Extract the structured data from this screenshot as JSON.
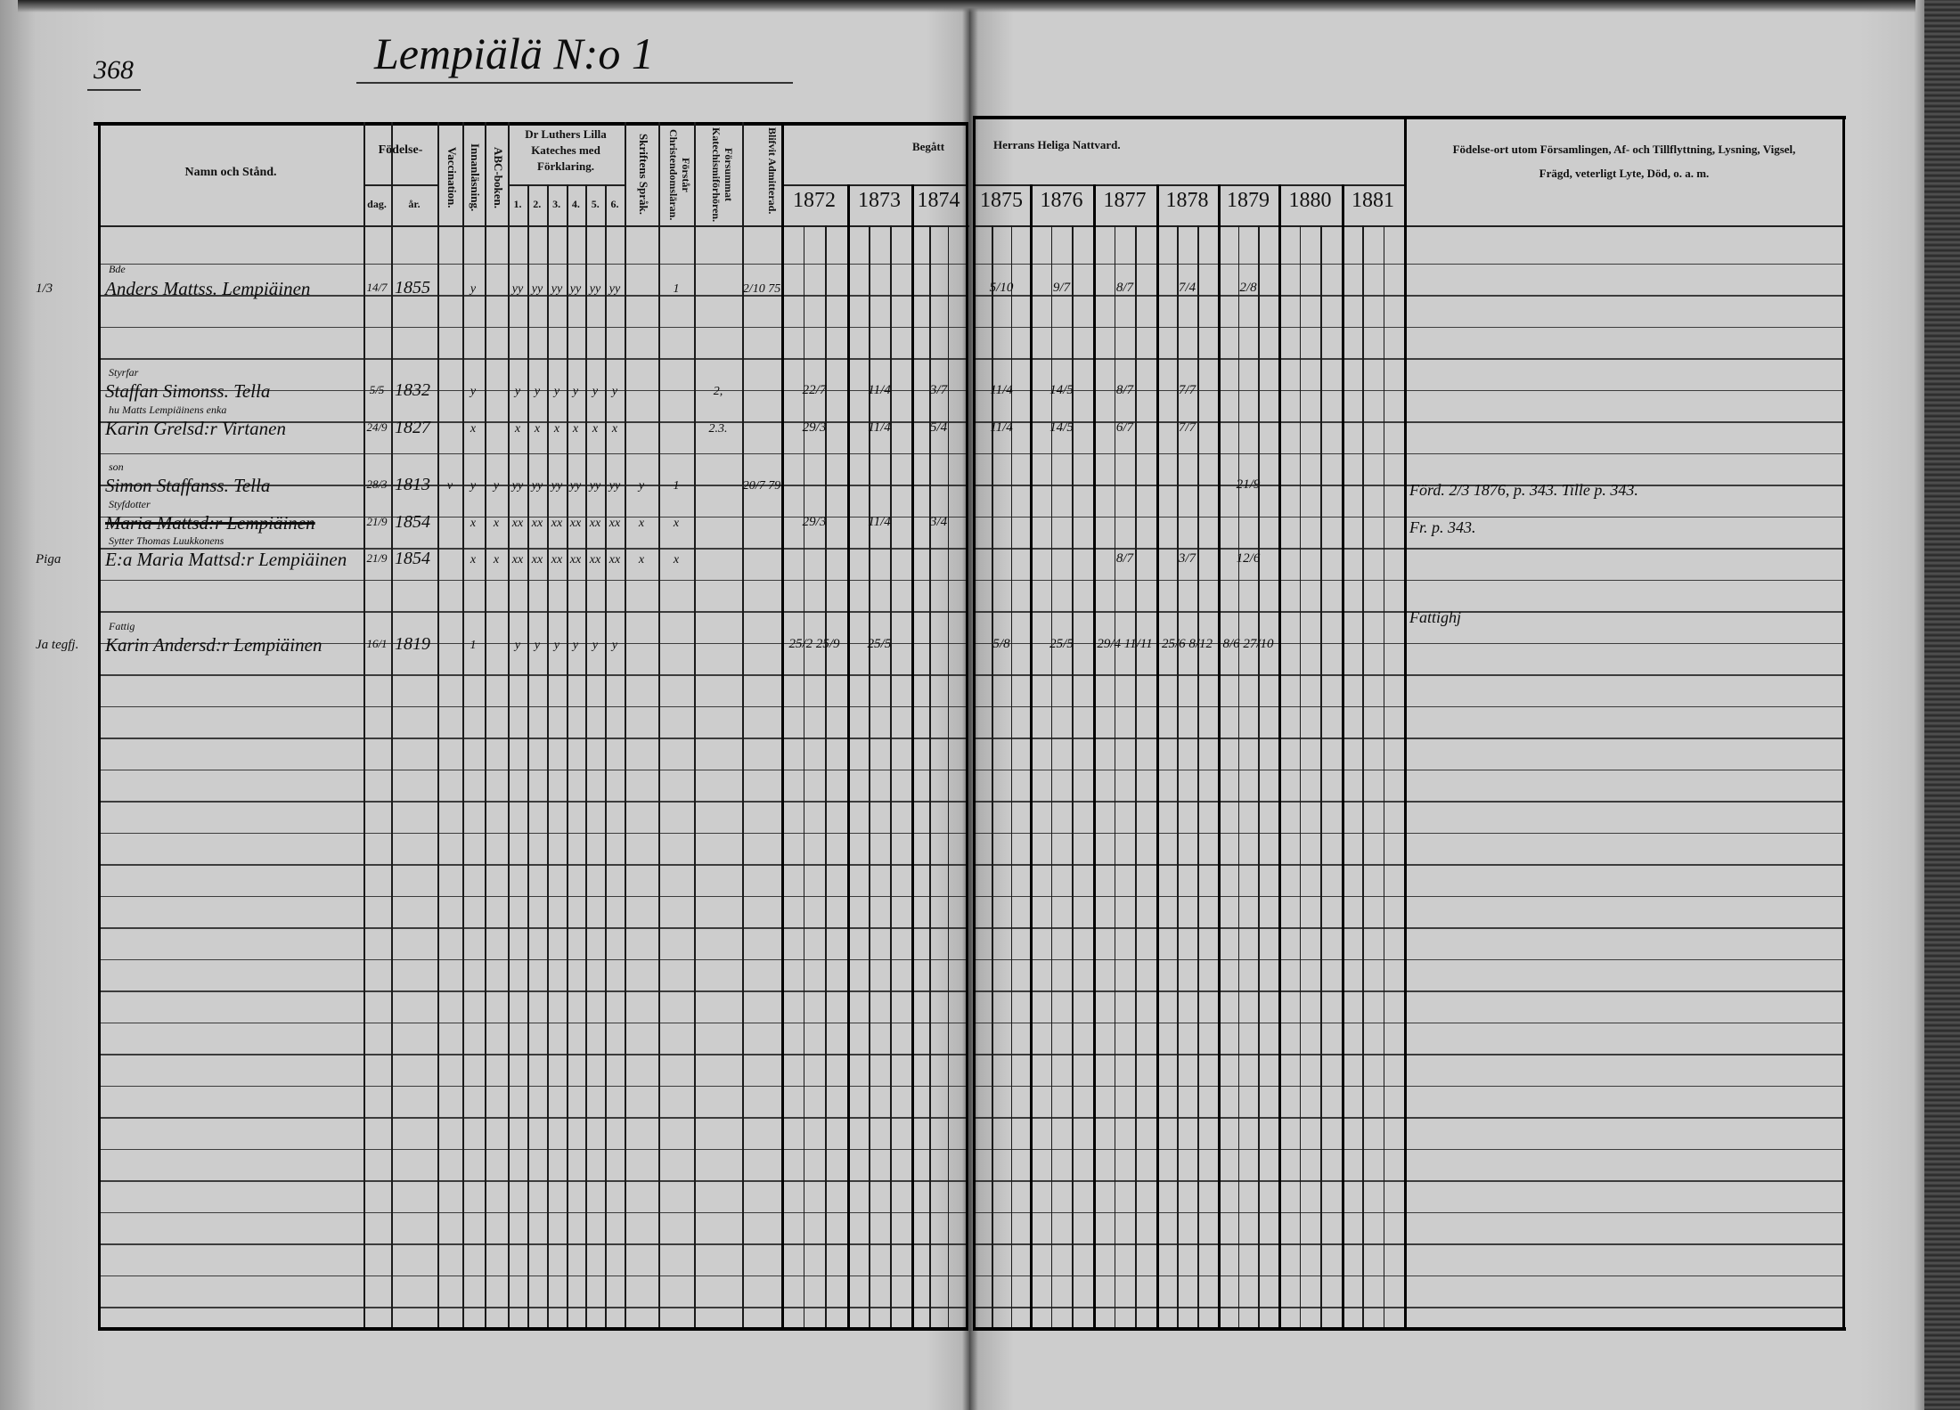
{
  "page_number": "368",
  "title": "Lempiälä N:o 1",
  "headers": {
    "name": "Namn och Stånd.",
    "birth": "Födelse-",
    "birth_day": "dag.",
    "birth_year": "år.",
    "vaccination": "Vaccination.",
    "reading": "Innanläsning.",
    "abc": "ABC-boken.",
    "catechism": "Dr Luthers Lilla Kateches med Förklaring.",
    "catechism_parts": [
      "1.",
      "2.",
      "3.",
      "4.",
      "5.",
      "6."
    ],
    "scripture": "Skriftens Språk.",
    "understands": "Förstår Christendomsläran.",
    "missed": "Försummat Katechismiförhören.",
    "admitted": "Blifvit Admitterad.",
    "communion_left": "Begått",
    "communion_right": "Herrans Heliga Nattvard.",
    "years": [
      "1872",
      "1873",
      "1874",
      "1875",
      "1876",
      "1877",
      "1878",
      "1879",
      "1880",
      "1881"
    ],
    "remarks_line1": "Födelse-ort utom Församlingen, Af- och Tillflyttning, Lysning, Vigsel,",
    "remarks_line2": "Frägd, veterligt Lyte, Död, o. a. m."
  },
  "entries": [
    {
      "margin": "1/3",
      "role": "Bde",
      "name": "Anders Mattss. Lempiäinen",
      "dag": "14/7",
      "ar": "1855",
      "marks": [
        {
          "col": "innan",
          "text": "y"
        },
        {
          "col": "k1",
          "text": "yy"
        },
        {
          "col": "k2",
          "text": "yy"
        },
        {
          "col": "k3",
          "text": "yy"
        },
        {
          "col": "k4",
          "text": "yy"
        },
        {
          "col": "k5",
          "text": "yy"
        },
        {
          "col": "k6",
          "text": "yy"
        },
        {
          "col": "forstar",
          "text": "1"
        },
        {
          "col": "admit",
          "text": "2/10 75"
        }
      ],
      "communion": [
        {
          "year": "1875",
          "text": "5/10"
        },
        {
          "year": "1876",
          "text": "9/7"
        },
        {
          "year": "1877",
          "text": "8/7"
        },
        {
          "year": "1878",
          "text": "7/4"
        },
        {
          "year": "1879",
          "text": "2/8"
        }
      ]
    },
    {
      "margin": "",
      "role": "Styrfar",
      "name": "Staffan Simonss. Tella",
      "dag": "5/5",
      "ar": "1832",
      "marks": [
        {
          "col": "innan",
          "text": "y"
        },
        {
          "col": "k1",
          "text": "y"
        },
        {
          "col": "k2",
          "text": "y"
        },
        {
          "col": "k3",
          "text": "y"
        },
        {
          "col": "k4",
          "text": "y"
        },
        {
          "col": "k5",
          "text": "y"
        },
        {
          "col": "k6",
          "text": "y"
        },
        {
          "col": "forsummat",
          "text": "2,"
        }
      ],
      "communion": [
        {
          "year": "1872",
          "text": "22/7"
        },
        {
          "year": "1873",
          "text": "11/4"
        },
        {
          "year": "1874",
          "text": "3/7"
        },
        {
          "year": "1875",
          "text": "11/4"
        },
        {
          "year": "1876",
          "text": "14/5"
        },
        {
          "year": "1877",
          "text": "8/7"
        },
        {
          "year": "1878",
          "text": "7/7"
        }
      ]
    },
    {
      "margin": "",
      "role": "hu Matts Lempiäinens enka",
      "name": "Karin Grelsd:r Virtanen",
      "dag": "24/9",
      "ar": "1827",
      "marks": [
        {
          "col": "innan",
          "text": "x"
        },
        {
          "col": "k1",
          "text": "x"
        },
        {
          "col": "k2",
          "text": "x"
        },
        {
          "col": "k3",
          "text": "x"
        },
        {
          "col": "k4",
          "text": "x"
        },
        {
          "col": "k5",
          "text": "x"
        },
        {
          "col": "k6",
          "text": "x"
        },
        {
          "col": "forsummat",
          "text": "2.3."
        }
      ],
      "communion": [
        {
          "year": "1872",
          "text": "29/3"
        },
        {
          "year": "1873",
          "text": "11/4"
        },
        {
          "year": "1874",
          "text": "5/4"
        },
        {
          "year": "1875",
          "text": "11/4"
        },
        {
          "year": "1876",
          "text": "14/5"
        },
        {
          "year": "1877",
          "text": "6/7"
        },
        {
          "year": "1878",
          "text": "7/7"
        }
      ]
    },
    {
      "margin": "",
      "role": "son",
      "name": "Simon Staffanss. Tella",
      "dag": "28/3",
      "ar": "1813",
      "marks": [
        {
          "col": "vacc",
          "text": "v"
        },
        {
          "col": "innan",
          "text": "y"
        },
        {
          "col": "abc",
          "text": "y"
        },
        {
          "col": "k1",
          "text": "yy"
        },
        {
          "col": "k2",
          "text": "yy"
        },
        {
          "col": "k3",
          "text": "yy"
        },
        {
          "col": "k4",
          "text": "yy"
        },
        {
          "col": "k5",
          "text": "yy"
        },
        {
          "col": "k6",
          "text": "yy"
        },
        {
          "col": "skrift",
          "text": "y"
        },
        {
          "col": "forstar",
          "text": "1"
        },
        {
          "col": "admit",
          "text": "20/7 79"
        }
      ],
      "communion": [
        {
          "year": "1879",
          "text": "21/9"
        }
      ],
      "remark": "Förd. 2/3 1876, p. 343. Tille p. 343."
    },
    {
      "margin": "",
      "role": "Styfdotter",
      "name": "Maria Mattsd:r Lempiäinen",
      "crossed": true,
      "dag": "21/9",
      "ar": "1854",
      "marks": [
        {
          "col": "innan",
          "text": "x"
        },
        {
          "col": "abc",
          "text": "x"
        },
        {
          "col": "k1",
          "text": "xx"
        },
        {
          "col": "k2",
          "text": "xx"
        },
        {
          "col": "k3",
          "text": "xx"
        },
        {
          "col": "k4",
          "text": "xx"
        },
        {
          "col": "k5",
          "text": "xx"
        },
        {
          "col": "k6",
          "text": "xx"
        },
        {
          "col": "skrift",
          "text": "x"
        },
        {
          "col": "forstar",
          "text": "x"
        }
      ],
      "communion": [
        {
          "year": "1872",
          "text": "29/3"
        },
        {
          "year": "1873",
          "text": "11/4"
        },
        {
          "year": "1874",
          "text": "3/4"
        }
      ]
    },
    {
      "margin": "Piga",
      "role": "Sytter Thomas Luukkonens",
      "name": "E:a Maria Mattsd:r Lempiäinen",
      "dag": "21/9",
      "ar": "1854",
      "marks": [
        {
          "col": "innan",
          "text": "x"
        },
        {
          "col": "abc",
          "text": "x"
        },
        {
          "col": "k1",
          "text": "xx"
        },
        {
          "col": "k2",
          "text": "xx"
        },
        {
          "col": "k3",
          "text": "xx"
        },
        {
          "col": "k4",
          "text": "xx"
        },
        {
          "col": "k5",
          "text": "xx"
        },
        {
          "col": "k6",
          "text": "xx"
        },
        {
          "col": "skrift",
          "text": "x"
        },
        {
          "col": "forstar",
          "text": "x"
        }
      ],
      "communion": [
        {
          "year": "1877",
          "text": "8/7"
        },
        {
          "year": "1878",
          "text": "3/7"
        },
        {
          "year": "1879",
          "text": "12/6"
        }
      ],
      "remark": "Fr. p. 343."
    },
    {
      "margin": "Ja tegfj.",
      "role": "Fattig",
      "name": "Karin Andersd:r Lempiäinen",
      "dag": "16/1",
      "ar": "1819",
      "marks": [
        {
          "col": "innan",
          "text": "1"
        },
        {
          "col": "k1",
          "text": "y"
        },
        {
          "col": "k2",
          "text": "y"
        },
        {
          "col": "k3",
          "text": "y"
        },
        {
          "col": "k4",
          "text": "y"
        },
        {
          "col": "k5",
          "text": "y"
        },
        {
          "col": "k6",
          "text": "y"
        }
      ],
      "communion": [
        {
          "year": "1872",
          "text": "25/2 25/9"
        },
        {
          "year": "1873",
          "text": "25/5"
        },
        {
          "year": "1875",
          "text": "5/8"
        },
        {
          "year": "1876",
          "text": "25/5"
        },
        {
          "year": "1877",
          "text": "29/4 11/11"
        },
        {
          "year": "1878",
          "text": "25/6 8/12"
        },
        {
          "year": "1879",
          "text": "8/6 27/10"
        }
      ],
      "remark": "Fattighj"
    }
  ]
}
